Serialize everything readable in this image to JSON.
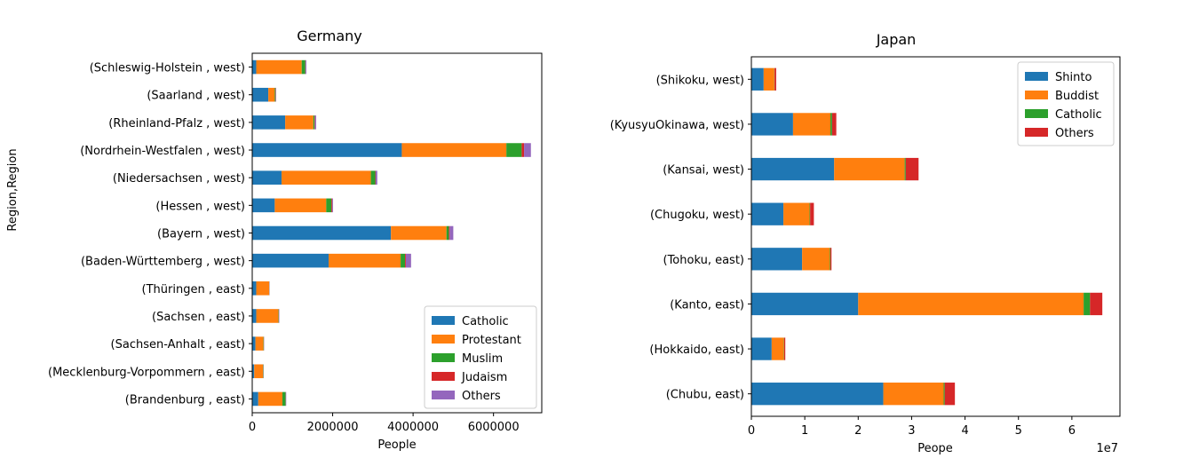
{
  "chart_data": [
    {
      "type": "bar",
      "orientation": "horizontal",
      "stacked": true,
      "title": "Germany",
      "xlabel": "People",
      "ylabel": "Region,Region",
      "xlim": [
        0,
        7200000
      ],
      "xticks": [
        0,
        2000000,
        4000000,
        6000000
      ],
      "xtick_labels": [
        "0",
        "2000000",
        "4000000",
        "6000000"
      ],
      "grid": false,
      "legend_position": "lower-right",
      "categories": [
        "(Brandenburg , east)",
        "(Mecklenburg-Vorpommern , east)",
        "(Sachsen-Anhalt , east)",
        "(Sachsen , east)",
        "(Thüringen , east)",
        "(Baden-Württemberg , west)",
        "(Bayern , west)",
        "(Hessen , west)",
        "(Niedersachsen , west)",
        "(Nordrhein-Westfalen , west)",
        "(Rheinland-Pfalz , west)",
        "(Saarland , west)",
        "(Schleswig-Holstein , west)"
      ],
      "series": [
        {
          "name": "Catholic",
          "color": "#1f77b4",
          "values": [
            150000,
            50000,
            80000,
            100000,
            100000,
            1900000,
            3450000,
            560000,
            730000,
            3720000,
            820000,
            400000,
            100000
          ]
        },
        {
          "name": "Protestant",
          "color": "#ff7f0e",
          "values": [
            600000,
            220000,
            200000,
            550000,
            320000,
            1790000,
            1380000,
            1280000,
            2220000,
            2600000,
            700000,
            160000,
            1130000
          ]
        },
        {
          "name": "Muslim",
          "color": "#2ca02c",
          "values": [
            80000,
            10000,
            10000,
            10000,
            5000,
            110000,
            60000,
            130000,
            110000,
            380000,
            30000,
            20000,
            90000
          ]
        },
        {
          "name": "Judaism",
          "color": "#d62728",
          "values": [
            5000,
            2000,
            2000,
            3000,
            2000,
            20000,
            20000,
            20000,
            10000,
            60000,
            10000,
            5000,
            5000
          ]
        },
        {
          "name": "Others",
          "color": "#9467bd",
          "values": [
            10000,
            5000,
            5000,
            10000,
            5000,
            130000,
            90000,
            20000,
            40000,
            170000,
            30000,
            10000,
            20000
          ]
        }
      ]
    },
    {
      "type": "bar",
      "orientation": "horizontal",
      "stacked": true,
      "title": "Japan",
      "xlabel": "Peope",
      "ylabel": "",
      "axis_multiplier": "1e7",
      "xlim": [
        0,
        6.9
      ],
      "xticks": [
        0,
        1,
        2,
        3,
        4,
        5,
        6
      ],
      "xtick_labels": [
        "0",
        "1",
        "2",
        "3",
        "4",
        "5",
        "6"
      ],
      "grid": false,
      "legend_position": "upper-right",
      "categories": [
        "(Chubu, east)",
        "(Hokkaido, east)",
        "(Kanto, east)",
        "(Tohoku, east)",
        "(Chugoku, west)",
        "(Kansai, west)",
        "(KyusyuOkinawa, west)",
        "(Shikoku, west)"
      ],
      "series": [
        {
          "name": "Shinto",
          "color": "#1f77b4",
          "values": [
            2.47,
            0.38,
            2.0,
            0.95,
            0.6,
            1.55,
            0.78,
            0.23
          ]
        },
        {
          "name": "Buddist",
          "color": "#ff7f0e",
          "values": [
            1.13,
            0.23,
            4.22,
            0.52,
            0.49,
            1.32,
            0.7,
            0.2
          ]
        },
        {
          "name": "Catholic",
          "color": "#2ca02c",
          "values": [
            0.02,
            0.005,
            0.12,
            0.01,
            0.01,
            0.02,
            0.03,
            0.005
          ]
        },
        {
          "name": "Others",
          "color": "#d62728",
          "values": [
            0.19,
            0.02,
            0.23,
            0.02,
            0.07,
            0.24,
            0.08,
            0.03
          ]
        }
      ]
    }
  ]
}
